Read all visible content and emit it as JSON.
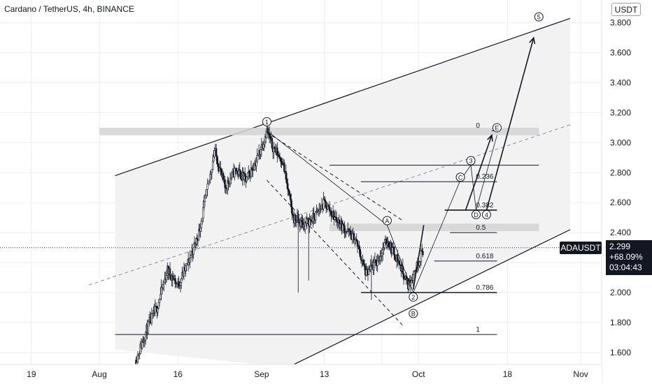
{
  "header": {
    "title": "Cardano / TetherUS, 4h, BINANCE",
    "currency_button": "USDT"
  },
  "price_tag": {
    "symbol": "ADAUSDT",
    "price": "2.299",
    "change": "+68.09%",
    "countdown": "03:04:43",
    "color": "#131722"
  },
  "colors": {
    "candle": "#131722",
    "zone": "#d4d4d4",
    "channel_fill": "#f2f2f2",
    "grid": "#eeeeee"
  },
  "chart_data": {
    "type": "candlestick",
    "symbol": "ADAUSDT",
    "interval": "4h",
    "exchange": "BINANCE",
    "y_axis": {
      "position": "right",
      "ticks": [
        1.6,
        1.8,
        2.0,
        2.2,
        2.4,
        2.6,
        2.8,
        3.0,
        3.2,
        3.4,
        3.6,
        3.8
      ],
      "tick_labels": [
        "1.600",
        "1.800",
        "2.000",
        "2.200",
        "2.400",
        "2.600",
        "2.800",
        "3.000",
        "3.200",
        "3.400",
        "3.600",
        "3.800"
      ],
      "range": [
        1.52,
        3.85
      ]
    },
    "x_axis": {
      "ticks": [
        "2021-07-19",
        "2021-08-01",
        "2021-08-16",
        "2021-09-01",
        "2021-09-13",
        "2021-09-24",
        "2021-10-01",
        "2021-10-18",
        "2021-11-01"
      ],
      "tick_labels": [
        "19",
        "Aug",
        "16",
        "Sep",
        "13",
        "",
        "Oct",
        "18",
        "Nov"
      ],
      "range": [
        "2021-07-13",
        "2021-11-05"
      ]
    },
    "last_price": 2.299,
    "price_path": [
      [
        "2021-08-08",
        1.55
      ],
      [
        "2021-08-10",
        1.75
      ],
      [
        "2021-08-12",
        1.9
      ],
      [
        "2021-08-14",
        2.15
      ],
      [
        "2021-08-16",
        2.05
      ],
      [
        "2021-08-18",
        2.2
      ],
      [
        "2021-08-20",
        2.4
      ],
      [
        "2021-08-22",
        2.75
      ],
      [
        "2021-08-23",
        2.95
      ],
      [
        "2021-08-25",
        2.7
      ],
      [
        "2021-08-27",
        2.82
      ],
      [
        "2021-08-29",
        2.75
      ],
      [
        "2021-08-31",
        2.88
      ],
      [
        "2021-09-02",
        3.08
      ],
      [
        "2021-09-03",
        2.98
      ],
      [
        "2021-09-05",
        2.88
      ],
      [
        "2021-09-07",
        2.5
      ],
      [
        "2021-09-09",
        2.45
      ],
      [
        "2021-09-11",
        2.5
      ],
      [
        "2021-09-13",
        2.6
      ],
      [
        "2021-09-15",
        2.5
      ],
      [
        "2021-09-17",
        2.42
      ],
      [
        "2021-09-19",
        2.35
      ],
      [
        "2021-09-21",
        2.12
      ],
      [
        "2021-09-23",
        2.2
      ],
      [
        "2021-09-25",
        2.35
      ],
      [
        "2021-09-27",
        2.22
      ],
      [
        "2021-09-29",
        2.05
      ],
      [
        "2021-09-30",
        2.12
      ],
      [
        "2021-10-02",
        2.299
      ]
    ],
    "price_line": 2.299,
    "zones": [
      {
        "y": [
          3.05,
          3.1
        ],
        "x": [
          "2021-08-01",
          "2021-10-24"
        ]
      },
      {
        "y": [
          2.41,
          2.46
        ],
        "x": [
          "2021-09-14",
          "2021-10-24"
        ]
      }
    ],
    "fibonacci": [
      {
        "label": "0",
        "value": 3.08
      },
      {
        "label": "0.236",
        "value": 2.74
      },
      {
        "label": "0.382",
        "value": 2.55
      },
      {
        "label": "0.5",
        "value": 2.4
      },
      {
        "label": "0.618",
        "value": 2.21
      },
      {
        "label": "0.786",
        "value": 2.0
      },
      {
        "label": "1",
        "value": 1.72
      }
    ],
    "wave_labels": [
      {
        "label": "1",
        "x": "2021-09-02",
        "y": 3.14
      },
      {
        "label": "2",
        "x": "2021-09-30",
        "y": 1.97
      },
      {
        "label": "3",
        "x": "2021-10-11",
        "y": 2.88
      },
      {
        "label": "4",
        "x": "2021-10-14",
        "y": 2.52
      },
      {
        "label": "5",
        "x": "2021-10-24",
        "y": 3.84
      },
      {
        "label": "A",
        "x": "2021-09-25",
        "y": 2.48
      },
      {
        "label": "B",
        "x": "2021-09-30",
        "y": 1.86
      },
      {
        "label": "C",
        "x": "2021-10-09",
        "y": 2.77
      },
      {
        "label": "D",
        "x": "2021-10-12",
        "y": 2.52
      },
      {
        "label": "E",
        "x": "2021-10-16",
        "y": 3.1
      }
    ]
  }
}
